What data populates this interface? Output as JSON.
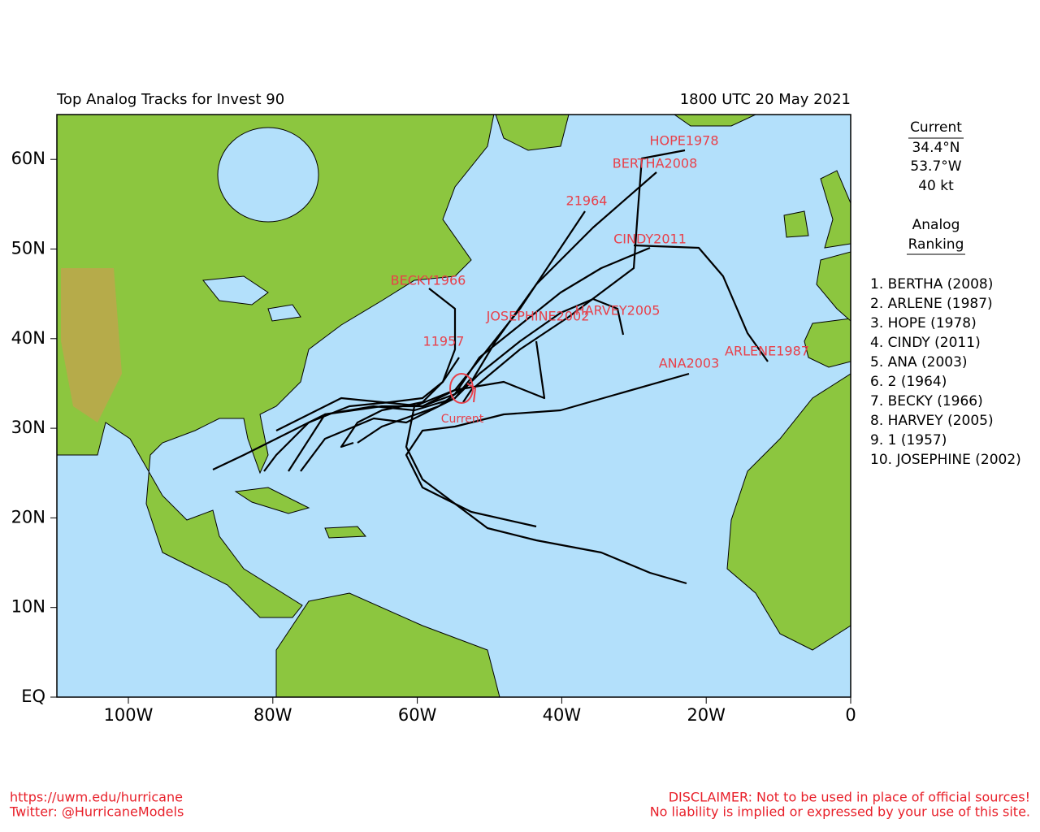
{
  "header": {
    "title": "Top Analog Tracks for Invest 90",
    "time": "1800 UTC 20 May 2021"
  },
  "map": {
    "lat_labels": [
      "EQ",
      "10N",
      "20N",
      "30N",
      "40N",
      "50N",
      "60N"
    ],
    "lon_labels": [
      "100W",
      "80W",
      "60W",
      "40W",
      "20W",
      "0"
    ],
    "track_labels": [
      "HOPE1978",
      "BERTHA2008",
      "21964",
      "CINDY2011",
      "BECKY1966",
      "JOSEPHINE2002",
      "HARVEY2005",
      "11957",
      "ARLENE1987",
      "ANA2003"
    ],
    "current_label": "Current"
  },
  "current": {
    "title": "Current",
    "lat": "34.4°N",
    "lon": "53.7°W",
    "wind": "40 kt"
  },
  "ranking": {
    "title": [
      "Analog",
      "Ranking"
    ],
    "items": [
      "1.  BERTHA (2008)",
      "2.  ARLENE (1987)",
      "3.  HOPE (1978)",
      "4.  CINDY (2011)",
      "5.  ANA (2003)",
      "6.  2 (1964)",
      "7.  BECKY (1966)",
      "8.  HARVEY (2005)",
      "9.  1 (1957)",
      "10. JOSEPHINE (2002)"
    ]
  },
  "footer": {
    "left": [
      "https://uwm.edu/hurricane",
      "Twitter: @HurricaneModels"
    ],
    "right": [
      "DISCLAIMER: Not to be used in place of official sources!",
      "No liability is implied or expressed by your use of this site."
    ]
  }
}
